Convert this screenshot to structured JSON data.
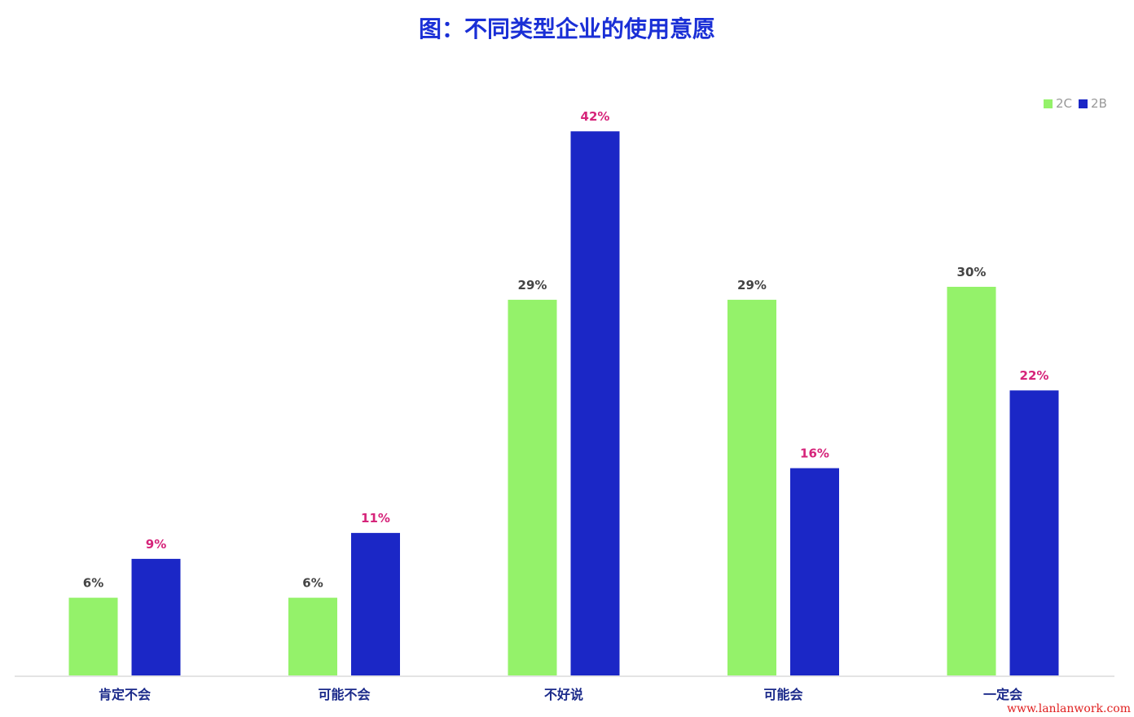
{
  "chart_data": {
    "type": "bar",
    "title": "图：不同类型企业的使用意愿",
    "categories": [
      "肯定不会",
      "可能不会",
      "不好说",
      "可能会",
      "一定会"
    ],
    "series": [
      {
        "name": "2C",
        "color": "#94f26a",
        "label_color": "#444444",
        "values": [
          6,
          6,
          29,
          29,
          30
        ],
        "labels": [
          "6%",
          "6%",
          "29%",
          "29%",
          "30%"
        ]
      },
      {
        "name": "2B",
        "color": "#1b27c6",
        "label_color": "#d6247a",
        "values": [
          9,
          11,
          42,
          16,
          22
        ],
        "labels": [
          "9%",
          "11%",
          "42%",
          "16%",
          "22%"
        ]
      }
    ],
    "ylim": [
      0,
      42
    ],
    "grid": false,
    "legend": "top-right",
    "xlabel": "",
    "ylabel": ""
  },
  "watermark": "www.lanlanwork.com"
}
